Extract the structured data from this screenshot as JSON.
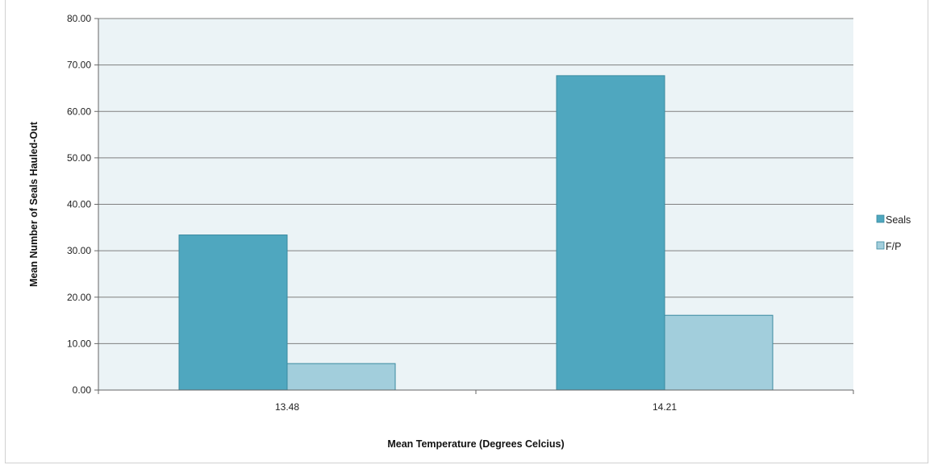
{
  "chart_data": {
    "type": "bar",
    "title": "",
    "xlabel": "Mean Temperature (Degrees Celcius)",
    "ylabel": "Mean Number of Seals Hauled-Out",
    "categories": [
      "13.48",
      "14.21"
    ],
    "series": [
      {
        "name": "Seals",
        "values": [
          33.4,
          67.7
        ],
        "color": "#4fa7bf"
      },
      {
        "name": "F/P",
        "values": [
          5.7,
          16.1
        ],
        "color": "#a2cedc"
      }
    ],
    "ylim": [
      0,
      80
    ],
    "yticks": [
      "0.00",
      "10.00",
      "20.00",
      "30.00",
      "40.00",
      "50.00",
      "60.00",
      "70.00",
      "80.00"
    ],
    "grid": true,
    "legend_position": "right",
    "plot_background": "#ebf3f6",
    "gridline_color": "#7f7f7f",
    "bar_stroke_color": "#3a8a9f"
  }
}
